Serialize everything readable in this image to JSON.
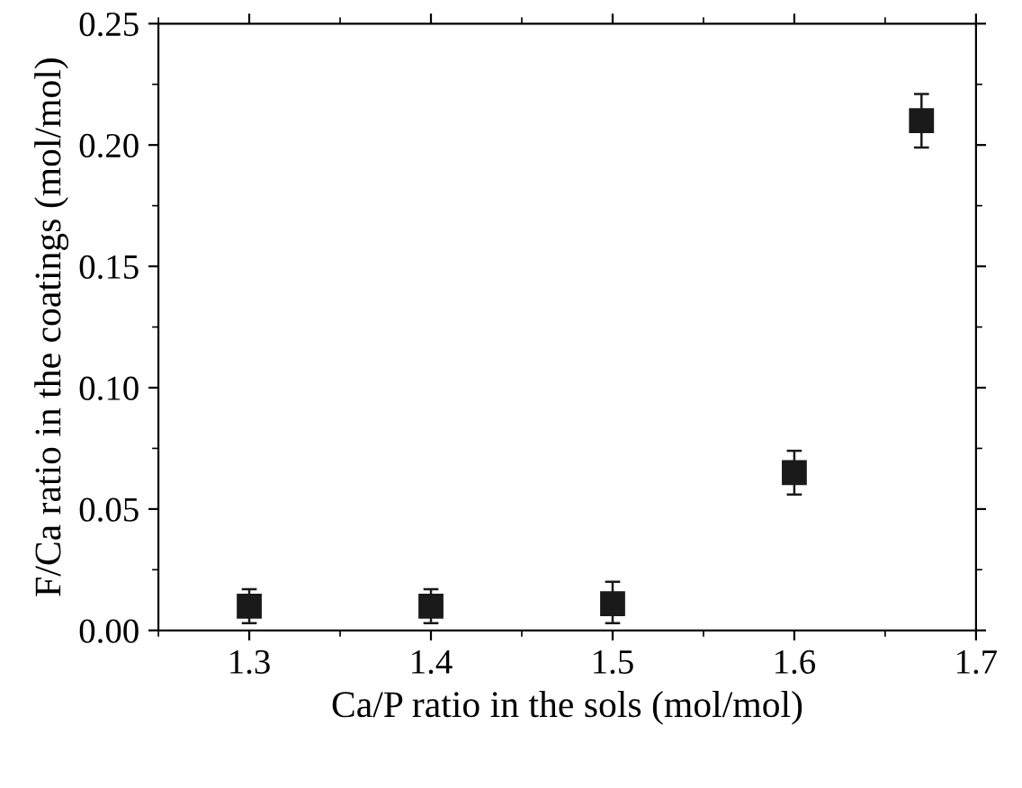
{
  "chart_data": {
    "type": "scatter",
    "xlabel": "Ca/P ratio in the sols (mol/mol)",
    "ylabel": "F/Ca ratio in the coatings (mol/mol)",
    "x": [
      1.3,
      1.4,
      1.5,
      1.6,
      1.67
    ],
    "series": [
      {
        "color": "#1a1a1a",
        "values": [
          0.01,
          0.01,
          0.011,
          0.065,
          0.21
        ],
        "errors": [
          [
            0.003,
            0.017
          ],
          [
            0.003,
            0.017
          ],
          [
            0.003,
            0.02
          ],
          [
            0.056,
            0.074
          ],
          [
            0.199,
            0.221
          ]
        ]
      }
    ],
    "marker": "square",
    "xlim": [
      1.25,
      1.7
    ],
    "xticks": [
      1.3,
      1.4,
      1.5,
      1.6,
      1.7
    ],
    "ylim": [
      0,
      0.25
    ],
    "yticks": [
      {
        "value": 0,
        "label": "0.00"
      },
      {
        "value": 0.05,
        "label": "0.05"
      },
      {
        "value": 0.1,
        "label": "0.10"
      },
      {
        "value": 0.15,
        "label": "0.15"
      },
      {
        "value": 0.2,
        "label": "0.20"
      },
      {
        "value": 0.25,
        "label": "0.25"
      }
    ],
    "grid": false,
    "legend": false
  }
}
